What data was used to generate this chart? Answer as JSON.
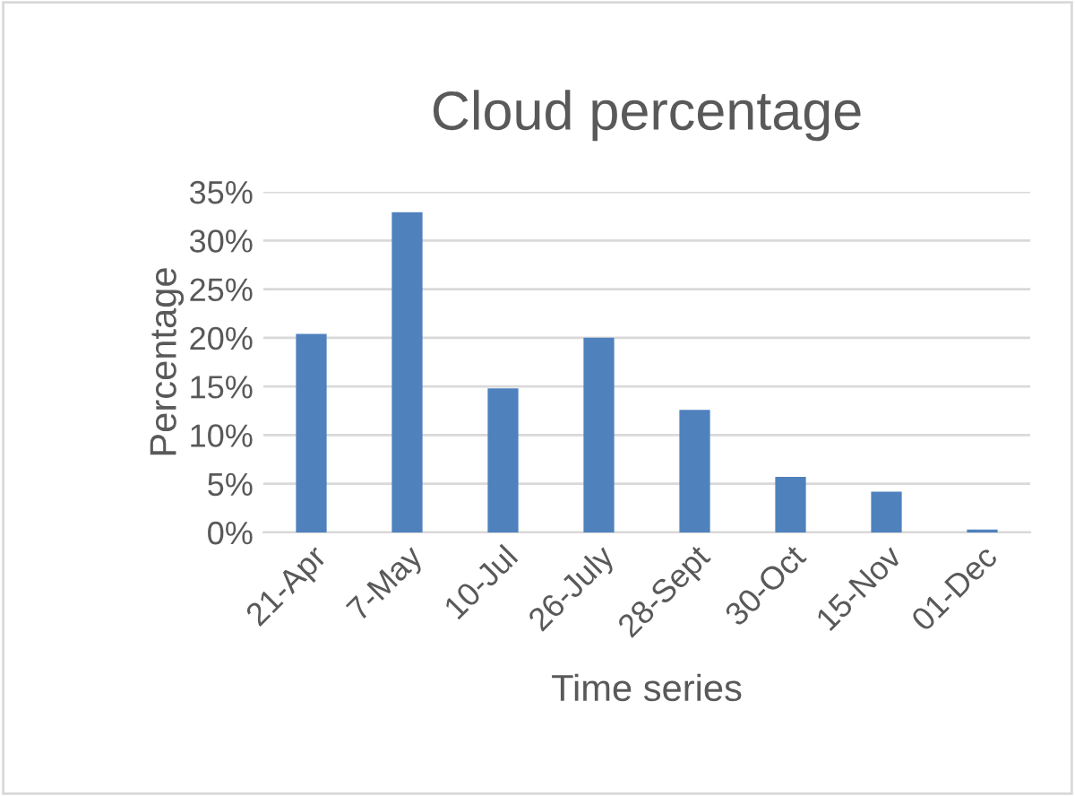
{
  "chart_data": {
    "type": "bar",
    "title": "Cloud percentage",
    "xlabel": "Time series",
    "ylabel": "Percentage",
    "categories": [
      "21-Apr",
      "7-May",
      "10-Jul",
      "26-July",
      "28-Sept",
      "30-Oct",
      "15-Nov",
      "01-Dec"
    ],
    "values": [
      20.4,
      32.9,
      14.8,
      20.0,
      12.6,
      5.7,
      4.2,
      0.3
    ],
    "color": "#4f81bd",
    "ylim": [
      0,
      35
    ],
    "yticks": [
      {
        "value": 0,
        "label": "0%"
      },
      {
        "value": 5,
        "label": "5%"
      },
      {
        "value": 10,
        "label": "10%"
      },
      {
        "value": 15,
        "label": "15%"
      },
      {
        "value": 20,
        "label": "20%"
      },
      {
        "value": 25,
        "label": "25%"
      },
      {
        "value": 30,
        "label": "30%"
      },
      {
        "value": 35,
        "label": "35%"
      }
    ],
    "grid": "y",
    "legend": false
  }
}
